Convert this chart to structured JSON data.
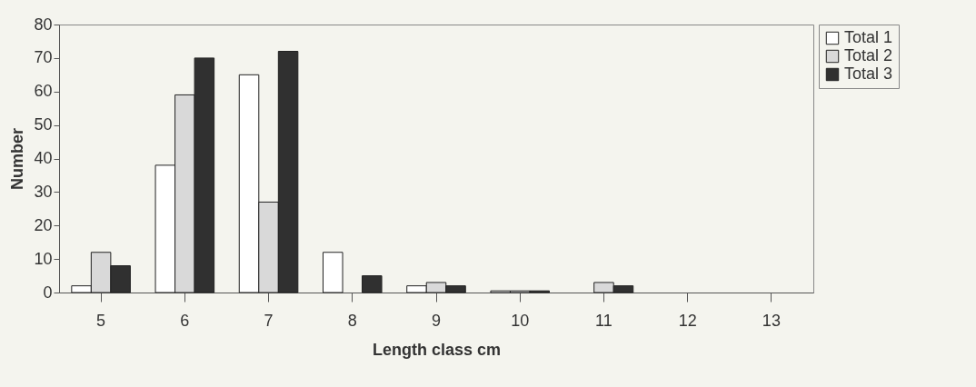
{
  "chart_data": {
    "type": "bar",
    "xlabel": "Length class cm",
    "ylabel": "Number",
    "categories": [
      "5",
      "6",
      "7",
      "8",
      "9",
      "10",
      "11",
      "12",
      "13"
    ],
    "series": [
      {
        "name": "Total 1",
        "color": "#ffffff",
        "values": [
          2,
          38,
          65,
          12,
          2,
          0.5,
          null,
          null,
          null
        ]
      },
      {
        "name": "Total 2",
        "color": "#d9d9d9",
        "values": [
          12,
          59,
          27,
          null,
          3,
          0.5,
          3,
          null,
          null
        ]
      },
      {
        "name": "Total 3",
        "color": "#303030",
        "values": [
          8,
          70,
          72,
          5,
          2,
          0.5,
          2,
          null,
          null
        ]
      }
    ],
    "ylim": [
      0,
      80
    ],
    "yticks": [
      0,
      10,
      20,
      30,
      40,
      50,
      60,
      70,
      80
    ],
    "grid": false,
    "legend": "right"
  }
}
